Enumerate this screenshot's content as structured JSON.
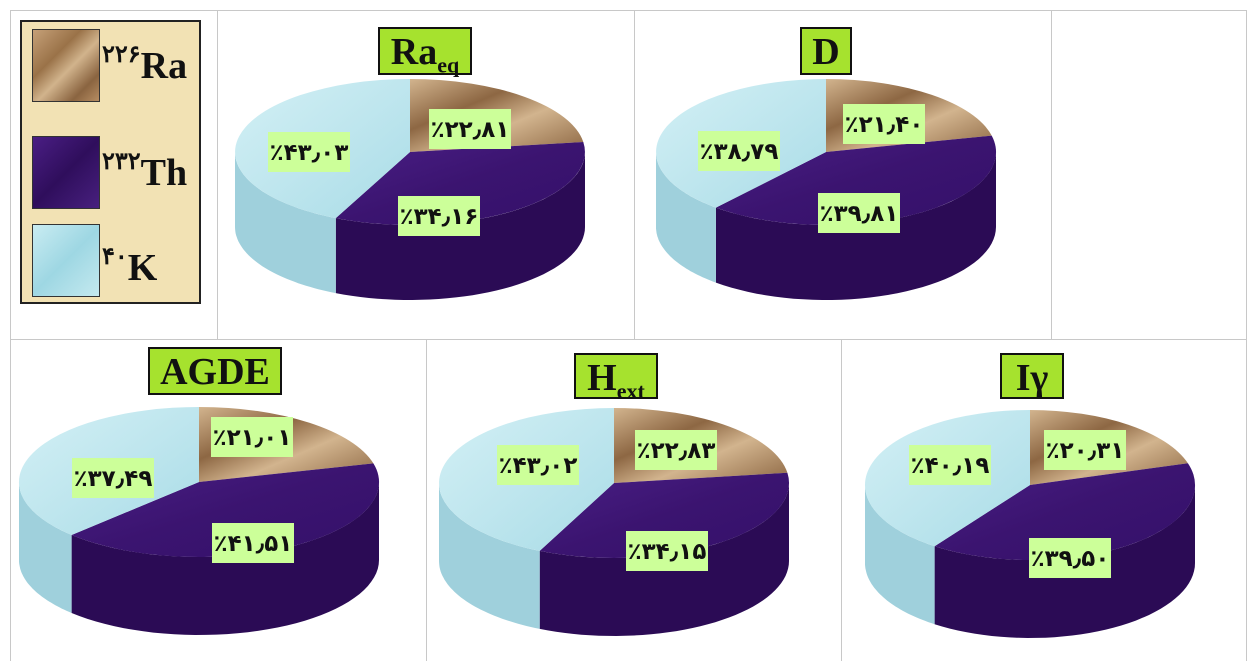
{
  "legend": {
    "items": [
      {
        "sup": "۲۲۶",
        "el": "Ra",
        "texture": "ra"
      },
      {
        "sup": "۲۳۲",
        "el": "Th",
        "texture": "th"
      },
      {
        "sup": "۴۰",
        "el": "K",
        "texture": "k"
      }
    ]
  },
  "colors": {
    "ra_light": "#d2b48e",
    "ra_dark": "#8d6743",
    "ra_side": "#7b5a3a",
    "th_top": "#3b1470",
    "th_side": "#2b0b55",
    "k_top": "#bfe6ee",
    "k_side": "#9fd0dc",
    "label_bg": "#ccff99",
    "title_bg": "#a6e22e"
  },
  "chart_data": [
    {
      "type": "pie",
      "title": "Ra",
      "title_sub": "eq",
      "categories": [
        "Ra-226",
        "Th-232",
        "K-40"
      ],
      "values": [
        22.81,
        34.16,
        43.03
      ],
      "labels": [
        "٪۲۲٫۸۱",
        "٪۳۴٫۱۶",
        "٪۴۳٫۰۳"
      ]
    },
    {
      "type": "pie",
      "title": "D",
      "title_sub": "",
      "categories": [
        "Ra-226",
        "Th-232",
        "K-40"
      ],
      "values": [
        21.4,
        39.81,
        38.79
      ],
      "labels": [
        "٪۲۱٫۴۰",
        "٪۳۹٫۸۱",
        "٪۳۸٫۷۹"
      ]
    },
    {
      "type": "pie",
      "title": "AGDE",
      "title_sub": "",
      "categories": [
        "Ra-226",
        "Th-232",
        "K-40"
      ],
      "values": [
        21.01,
        41.51,
        37.49
      ],
      "labels": [
        "٪۲۱٫۰۱",
        "٪۴۱٫۵۱",
        "٪۳۷٫۴۹"
      ]
    },
    {
      "type": "pie",
      "title": "H",
      "title_sub": "ext",
      "categories": [
        "Ra-226",
        "Th-232",
        "K-40"
      ],
      "values": [
        22.83,
        34.15,
        43.02
      ],
      "labels": [
        "٪۲۲٫۸۳",
        "٪۳۴٫۱۵",
        "٪۴۳٫۰۲"
      ]
    },
    {
      "type": "pie",
      "title": "Iγ",
      "title_sub": "",
      "categories": [
        "Ra-226",
        "Th-232",
        "K-40"
      ],
      "values": [
        20.31,
        39.5,
        40.19
      ],
      "labels": [
        "٪۲۰٫۳۱",
        "٪۳۹٫۵۰",
        "٪۴۰٫۱۹"
      ]
    }
  ]
}
